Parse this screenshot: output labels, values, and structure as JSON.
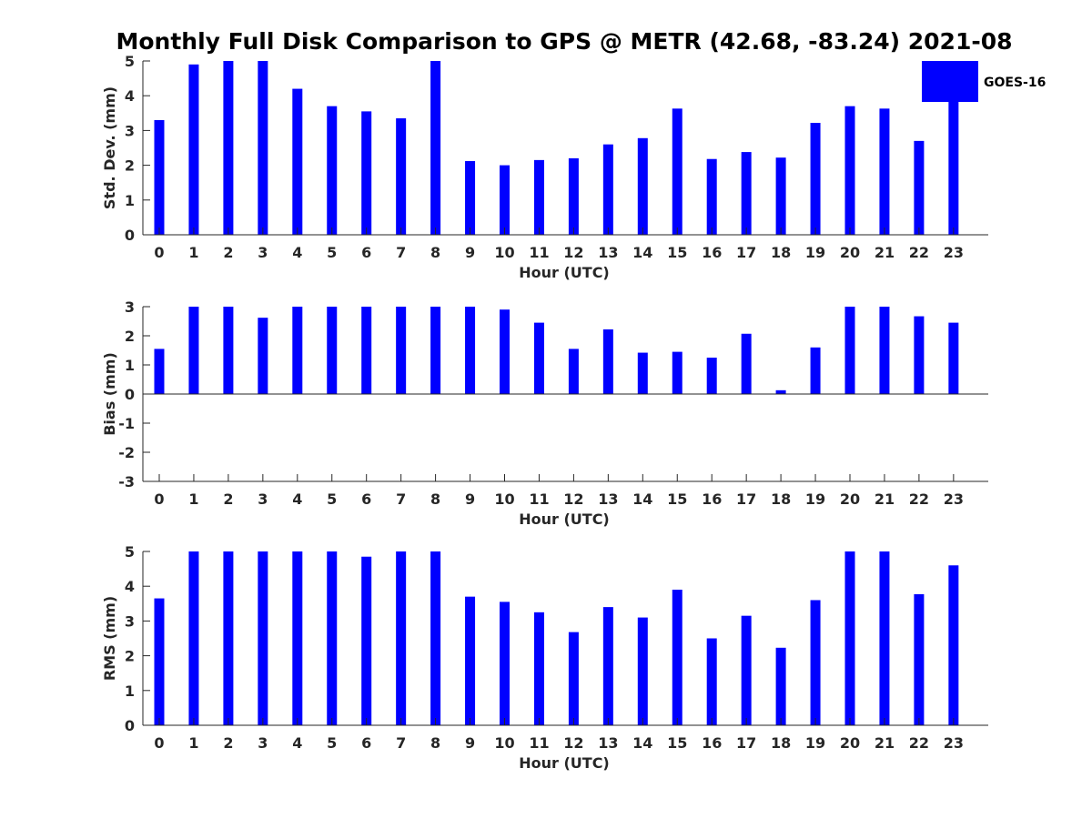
{
  "title": "Monthly Full Disk Comparison to GPS @ METR (42.68, -83.24) 2021-08",
  "colors": {
    "bar": "#0000ff",
    "axis": "#262626"
  },
  "legend": {
    "label": "GOES-16",
    "placement": "top-right"
  },
  "chart_data": [
    {
      "type": "bar",
      "categories": [
        "0",
        "1",
        "2",
        "3",
        "4",
        "5",
        "6",
        "7",
        "8",
        "9",
        "10",
        "11",
        "12",
        "13",
        "14",
        "15",
        "16",
        "17",
        "18",
        "19",
        "20",
        "21",
        "22",
        "23"
      ],
      "series": [
        {
          "name": "GOES-16",
          "values": [
            3.3,
            4.9,
            5,
            5,
            4.2,
            3.7,
            3.55,
            3.35,
            5,
            2.12,
            2.0,
            2.15,
            2.2,
            2.6,
            2.78,
            3.63,
            2.18,
            2.38,
            2.22,
            3.22,
            3.7,
            3.63,
            2.7,
            3.85
          ]
        }
      ],
      "xlabel": "Hour (UTC)",
      "ylabel": "Std. Dev. (mm)",
      "ylim": [
        0,
        5
      ],
      "yticks": [
        "0",
        "1",
        "2",
        "3",
        "4",
        "5"
      ],
      "grid": false
    },
    {
      "type": "bar",
      "categories": [
        "0",
        "1",
        "2",
        "3",
        "4",
        "5",
        "6",
        "7",
        "8",
        "9",
        "10",
        "11",
        "12",
        "13",
        "14",
        "15",
        "16",
        "17",
        "18",
        "19",
        "20",
        "21",
        "22",
        "23"
      ],
      "series": [
        {
          "name": "GOES-16",
          "values": [
            1.55,
            3,
            3,
            2.62,
            3,
            3,
            3,
            3,
            3,
            3,
            2.9,
            2.45,
            1.55,
            2.22,
            1.42,
            1.45,
            1.25,
            2.07,
            0.13,
            1.6,
            3,
            3,
            2.67,
            2.45
          ]
        }
      ],
      "xlabel": "Hour (UTC)",
      "ylabel": "Bias (mm)",
      "ylim": [
        -3,
        3
      ],
      "yticks": [
        "-3",
        "-2",
        "-1",
        "0",
        "1",
        "2",
        "3"
      ],
      "grid": false
    },
    {
      "type": "bar",
      "categories": [
        "0",
        "1",
        "2",
        "3",
        "4",
        "5",
        "6",
        "7",
        "8",
        "9",
        "10",
        "11",
        "12",
        "13",
        "14",
        "15",
        "16",
        "17",
        "18",
        "19",
        "20",
        "21",
        "22",
        "23"
      ],
      "series": [
        {
          "name": "GOES-16",
          "values": [
            3.65,
            5,
            5,
            5,
            5,
            5,
            4.85,
            5,
            5,
            3.7,
            3.55,
            3.25,
            2.68,
            3.4,
            3.1,
            3.9,
            2.5,
            3.15,
            2.23,
            3.6,
            5,
            5,
            3.77,
            4.6
          ]
        }
      ],
      "xlabel": "Hour (UTC)",
      "ylabel": "RMS (mm)",
      "ylim": [
        0,
        5
      ],
      "yticks": [
        "0",
        "1",
        "2",
        "3",
        "4",
        "5"
      ],
      "grid": false
    }
  ]
}
